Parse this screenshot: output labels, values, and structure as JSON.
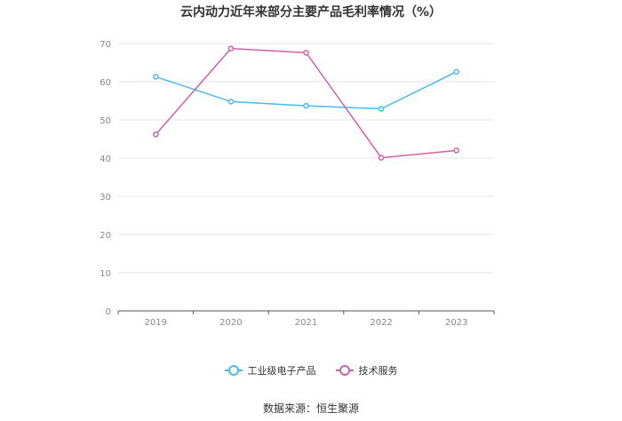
{
  "chart_data": {
    "type": "line",
    "title": "云内动力近年来部分主要产品毛利率情况（%）",
    "categories": [
      "2019",
      "2020",
      "2021",
      "2022",
      "2023"
    ],
    "ylim": [
      0,
      70
    ],
    "yticks": [
      "0",
      "10",
      "20",
      "30",
      "40",
      "50",
      "60",
      "70"
    ],
    "grid": true,
    "legend_position": "bottom",
    "series": [
      {
        "name": "工业级电子产品",
        "color": "#4bb9ef",
        "values": [
          61.3,
          54.8,
          53.7,
          52.9,
          62.6
        ]
      },
      {
        "name": "技术服务",
        "color": "#d060a8",
        "values": [
          46.2,
          68.7,
          67.6,
          40.1,
          42.0
        ]
      }
    ]
  },
  "source": "数据来源：恒生聚源"
}
